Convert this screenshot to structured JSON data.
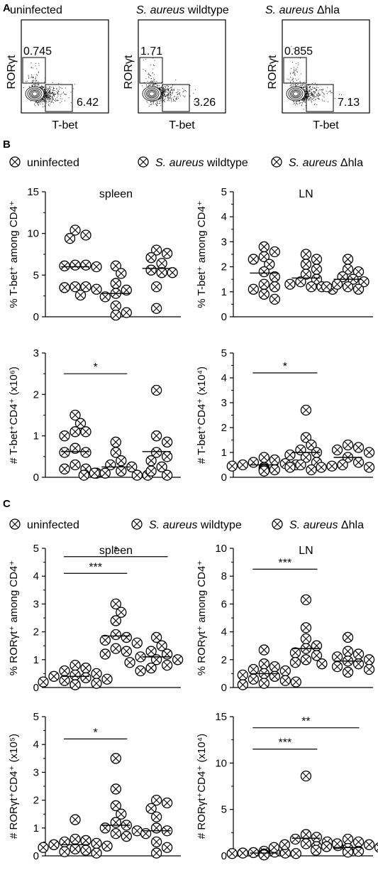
{
  "panels": {
    "a": "A",
    "b": "B",
    "c": "C"
  },
  "flow": [
    {
      "title": "uninfected",
      "y_label": "RORγt",
      "x_label": "T-bet",
      "gate_upper": "0.745",
      "gate_lower": "6.42"
    },
    {
      "title_italic": "S. aureus",
      "title_rest": " wildtype",
      "y_label": "RORγt",
      "x_label": "T-bet",
      "gate_upper": "1.71",
      "gate_lower": "3.26"
    },
    {
      "title_italic": "S. aureus",
      "title_rest": " Δhla",
      "y_label": "RORγt",
      "x_label": "T-bet",
      "gate_upper": "0.855",
      "gate_lower": "7.13"
    }
  ],
  "legend": {
    "uninfected": "uninfected",
    "wt_italic": "S. aureus",
    "wt_rest": " wildtype",
    "dhla_italic": "S. aureus",
    "dhla_rest": " Δhla"
  },
  "colors": {
    "ink": "#000000",
    "fill_open": "#ffffff"
  },
  "markers": {
    "uninfected": "circle-x",
    "wildtype": "filled-circle",
    "dhla": "open-circle"
  },
  "chart_data": [
    {
      "type": "scatter",
      "id": "tbet-pct-spleen",
      "title": "spleen",
      "ylabel": "% T-bet⁺ among CD4⁺",
      "ylim": [
        0,
        15
      ],
      "yticks": [
        0,
        5,
        10,
        15
      ],
      "groups": [
        {
          "series": "uninfected",
          "values": [
            10.4,
            9.8,
            9.4,
            6.2,
            6.2,
            6.1,
            6.0,
            3.6,
            3.6,
            3.5,
            3.3,
            2.6
          ],
          "mean": 6.0
        },
        {
          "series": "wildtype",
          "values": [
            6.1,
            5.2,
            4.0,
            3.2,
            2.8,
            2.4,
            1.3,
            0.5,
            0.2
          ],
          "mean": 2.8
        },
        {
          "series": "dhla",
          "values": [
            8.0,
            7.6,
            7.1,
            6.4,
            5.6,
            5.3,
            5.3,
            3.6,
            1.0
          ],
          "mean": 5.8
        }
      ]
    },
    {
      "type": "scatter",
      "id": "tbet-pct-ln",
      "title": "LN",
      "ylabel": "% T-bet⁺ among CD4⁺",
      "ylim": [
        0,
        5
      ],
      "yticks": [
        0,
        1,
        2,
        3,
        4,
        5
      ],
      "groups": [
        {
          "series": "uninfected",
          "values": [
            2.8,
            2.6,
            2.4,
            2.3,
            2.1,
            1.8,
            1.6,
            1.3,
            1.2,
            1.1,
            0.9,
            0.7
          ],
          "mean": 1.75
        },
        {
          "series": "wildtype",
          "values": [
            2.5,
            2.3,
            2.1,
            1.9,
            1.7,
            1.5,
            1.4,
            1.3,
            1.2,
            1.2,
            1.1
          ],
          "mean": 1.55
        },
        {
          "series": "dhla",
          "values": [
            2.3,
            1.9,
            1.8,
            1.6,
            1.5,
            1.4,
            1.3,
            1.2,
            1.2,
            1.1
          ],
          "mean": 1.5
        }
      ]
    },
    {
      "type": "scatter",
      "id": "tbet-abs-spleen",
      "title": "",
      "ylabel": "# T-bet⁺CD4⁺ (x10⁶)",
      "ylim": [
        0,
        3
      ],
      "yticks": [
        0,
        1,
        2,
        3
      ],
      "groups": [
        {
          "series": "uninfected",
          "values": [
            1.5,
            1.3,
            1.1,
            1.1,
            1.0,
            0.7,
            0.6,
            0.6,
            0.3,
            0.2,
            0.2,
            0.1
          ],
          "mean": 0.62
        },
        {
          "series": "wildtype",
          "values": [
            0.85,
            0.6,
            0.4,
            0.3,
            0.25,
            0.15,
            0.1,
            0.1,
            0.05,
            0.05,
            0.05
          ],
          "mean": 0.25
        },
        {
          "series": "dhla",
          "values": [
            2.1,
            1.0,
            0.85,
            0.6,
            0.5,
            0.4,
            0.25,
            0.15,
            0.05
          ],
          "mean": 0.62
        }
      ],
      "significance": [
        {
          "from": 0,
          "to": 1,
          "label": "*",
          "y": 2.5
        }
      ]
    },
    {
      "type": "scatter",
      "id": "tbet-abs-ln",
      "title": "",
      "ylabel": "# T-bet⁺CD4⁺ (x10⁴)",
      "ylim": [
        0,
        5
      ],
      "yticks": [
        0,
        1,
        2,
        3,
        4,
        5
      ],
      "groups": [
        {
          "series": "uninfected",
          "values": [
            0.8,
            0.7,
            0.6,
            0.55,
            0.5,
            0.5,
            0.45,
            0.4,
            0.35,
            0.3,
            0.3,
            0.25
          ],
          "mean": 0.5
        },
        {
          "series": "wildtype",
          "values": [
            2.7,
            1.6,
            1.3,
            1.1,
            1.0,
            0.9,
            0.8,
            0.6,
            0.5,
            0.4,
            0.3
          ],
          "mean": 1.0
        },
        {
          "series": "dhla",
          "values": [
            1.3,
            1.2,
            1.1,
            1.0,
            0.8,
            0.6,
            0.5,
            0.45,
            0.4,
            0.4
          ],
          "mean": 0.8
        }
      ],
      "significance": [
        {
          "from": 0,
          "to": 1,
          "label": "*",
          "y": 4.2
        }
      ]
    },
    {
      "type": "scatter",
      "id": "rorgt-pct-spleen",
      "title": "spleen",
      "ylabel": "% RORγt⁺ among CD4⁺",
      "ylim": [
        0,
        5
      ],
      "yticks": [
        0,
        1,
        2,
        3,
        4,
        5
      ],
      "groups": [
        {
          "series": "uninfected",
          "values": [
            0.8,
            0.7,
            0.6,
            0.5,
            0.45,
            0.4,
            0.35,
            0.3,
            0.25,
            0.2,
            0.15,
            0.1,
            0.1
          ],
          "mean": 0.4
        },
        {
          "series": "wildtype",
          "values": [
            3.0,
            2.7,
            2.4,
            1.9,
            1.8,
            1.7,
            1.6,
            1.4,
            1.3,
            1.2
          ],
          "mean": 1.85
        },
        {
          "series": "dhla",
          "values": [
            1.8,
            1.5,
            1.3,
            1.2,
            1.1,
            1.0,
            1.0,
            0.9,
            0.8,
            0.7,
            0.6
          ],
          "mean": 1.1
        }
      ],
      "significance": [
        {
          "from": 0,
          "to": 1,
          "label": "***",
          "y": 4.1
        },
        {
          "from": 0,
          "to": 2,
          "label": "*",
          "y": 4.7
        }
      ]
    },
    {
      "type": "scatter",
      "id": "rorgt-pct-ln",
      "title": "LN",
      "ylabel": "% RORγt⁺ among CD4⁺",
      "ylim": [
        0,
        10
      ],
      "yticks": [
        0,
        2,
        4,
        6,
        8,
        10
      ],
      "groups": [
        {
          "series": "uninfected",
          "values": [
            2.7,
            1.7,
            1.5,
            1.3,
            1.2,
            1.0,
            0.9,
            0.8,
            0.6,
            0.5,
            0.4,
            0.3,
            0.2
          ],
          "mean": 1.0
        },
        {
          "series": "wildtype",
          "values": [
            6.3,
            4.3,
            3.5,
            3.0,
            2.8,
            2.5,
            2.3,
            2.0,
            1.8,
            1.7
          ],
          "mean": 2.8
        },
        {
          "series": "dhla",
          "values": [
            3.6,
            2.6,
            2.4,
            2.2,
            2.0,
            1.9,
            1.7,
            1.5,
            1.3,
            1.1
          ],
          "mean": 1.9
        }
      ],
      "significance": [
        {
          "from": 0,
          "to": 1,
          "label": "***",
          "y": 8.5
        }
      ]
    },
    {
      "type": "scatter",
      "id": "rorgt-abs-spleen",
      "title": "",
      "ylabel": "# RORγt⁺CD4⁺ (x10⁵)",
      "ylim": [
        0,
        5
      ],
      "yticks": [
        0,
        1,
        2,
        3,
        4,
        5
      ],
      "groups": [
        {
          "series": "uninfected",
          "values": [
            1.3,
            0.6,
            0.55,
            0.5,
            0.45,
            0.4,
            0.35,
            0.3,
            0.25,
            0.2,
            0.15,
            0.1
          ],
          "mean": 0.4
        },
        {
          "series": "wildtype",
          "values": [
            3.5,
            2.4,
            1.8,
            1.5,
            1.2,
            1.1,
            1.0,
            0.9,
            0.8,
            0.7
          ],
          "mean": 1.1
        },
        {
          "series": "dhla",
          "values": [
            2.0,
            1.9,
            1.7,
            1.4,
            1.0,
            0.9,
            0.8,
            0.5,
            0.3,
            0.1
          ],
          "mean": 0.9
        }
      ],
      "significance": [
        {
          "from": 0,
          "to": 1,
          "label": "*",
          "y": 4.2
        }
      ]
    },
    {
      "type": "scatter",
      "id": "rorgt-abs-ln",
      "title": "",
      "ylabel": "# RORγt⁺CD4⁺ (x10⁴)",
      "ylim": [
        0,
        15
      ],
      "yticks": [
        0,
        5,
        10,
        15
      ],
      "groups": [
        {
          "series": "uninfected",
          "values": [
            0.5,
            0.4,
            0.35,
            0.3,
            0.3,
            0.25,
            0.25,
            0.2,
            0.2,
            0.15,
            0.15,
            0.1
          ],
          "mean": 0.3
        },
        {
          "series": "wildtype",
          "values": [
            8.6,
            2.3,
            2.0,
            1.8,
            1.5,
            1.3,
            1.2,
            1.1,
            1.0,
            0.9
          ],
          "mean": 1.9
        },
        {
          "series": "dhla",
          "values": [
            1.8,
            1.5,
            1.3,
            1.2,
            1.0,
            0.9,
            0.8,
            0.6,
            0.5,
            0.4
          ],
          "mean": 0.9
        }
      ],
      "significance": [
        {
          "from": 0,
          "to": 1,
          "label": "***",
          "y": 11.5
        },
        {
          "from": 0,
          "to": 2,
          "label": "**",
          "y": 13.8
        }
      ]
    }
  ]
}
